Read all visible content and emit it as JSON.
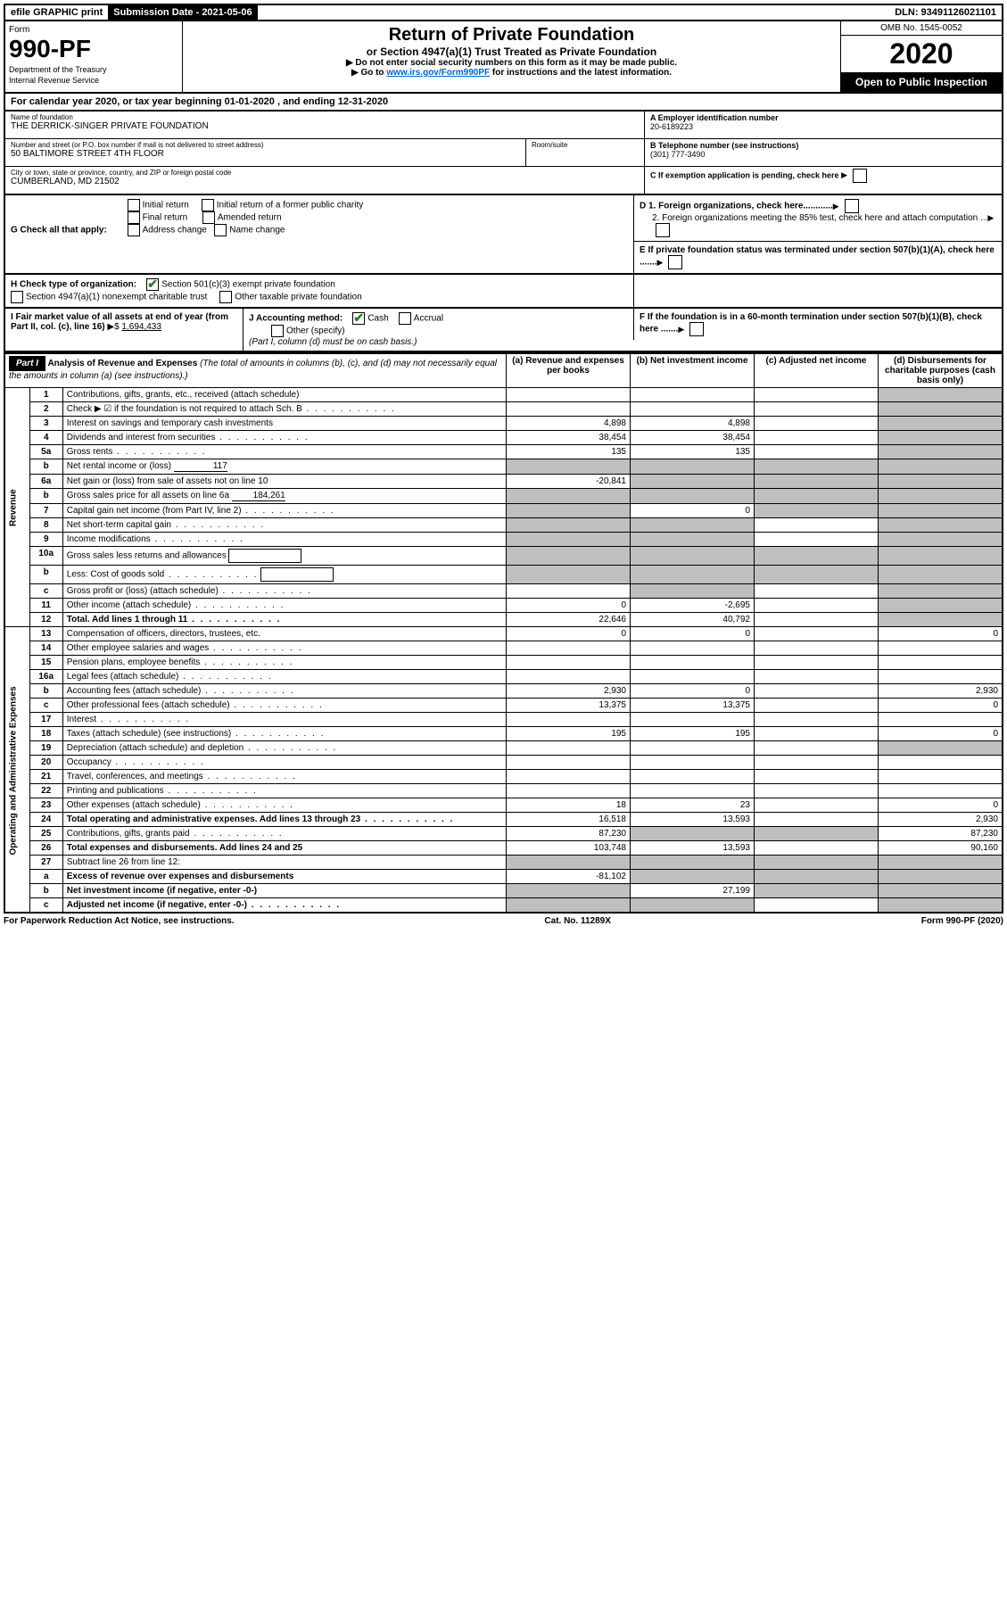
{
  "topbar": {
    "efile": "efile GRAPHIC print",
    "sub_label": "Submission Date - 2021-05-06",
    "dln": "DLN: 93491126021101"
  },
  "header": {
    "form_label": "Form",
    "form_number": "990-PF",
    "dept1": "Department of the Treasury",
    "dept2": "Internal Revenue Service",
    "title": "Return of Private Foundation",
    "sub": "or Section 4947(a)(1) Trust Treated as Private Foundation",
    "note1": "▶ Do not enter social security numbers on this form as it may be made public.",
    "note2_pre": "▶ Go to ",
    "note2_link": "www.irs.gov/Form990PF",
    "note2_post": " for instructions and the latest information.",
    "omb": "OMB No. 1545-0052",
    "year": "2020",
    "open": "Open to Public Inspection"
  },
  "cal_year": "For calendar year 2020, or tax year beginning 01-01-2020                            , and ending 12-31-2020",
  "info": {
    "name_lbl": "Name of foundation",
    "name": "THE DERRICK-SINGER PRIVATE FOUNDATION",
    "addr_lbl": "Number and street (or P.O. box number if mail is not delivered to street address)",
    "addr": "50 BALTIMORE STREET 4TH FLOOR",
    "room_lbl": "Room/suite",
    "city_lbl": "City or town, state or province, country, and ZIP or foreign postal code",
    "city": "CUMBERLAND, MD  21502",
    "a_lbl": "A Employer identification number",
    "a_val": "20-6189223",
    "b_lbl": "B Telephone number (see instructions)",
    "b_val": "(301) 777-3490",
    "c_lbl": "C If exemption application is pending, check here"
  },
  "g": {
    "label": "G Check all that apply:",
    "opts": [
      "Initial return",
      "Final return",
      "Address change",
      "Initial return of a former public charity",
      "Amended return",
      "Name change"
    ],
    "d1": "D 1. Foreign organizations, check here............",
    "d2": "2. Foreign organizations meeting the 85% test, check here and attach computation ...",
    "e": "E  If private foundation status was terminated under section 507(b)(1)(A), check here ......."
  },
  "h": {
    "label": "H Check type of organization:",
    "opt1": "Section 501(c)(3) exempt private foundation",
    "opt2": "Section 4947(a)(1) nonexempt charitable trust",
    "opt3": "Other taxable private foundation"
  },
  "i": {
    "label": "I Fair market value of all assets at end of year (from Part II, col. (c), line 16)",
    "valpre": "▶$",
    "val": "1,694,433",
    "j_label": "J Accounting method:",
    "j_cash": "Cash",
    "j_accrual": "Accrual",
    "j_other": "Other (specify)",
    "j_note": "(Part I, column (d) must be on cash basis.)",
    "f": "F  If the foundation is in a 60-month termination under section 507(b)(1)(B), check here ......."
  },
  "part1": {
    "label": "Part I",
    "title": "Analysis of Revenue and Expenses",
    "note": "(The total of amounts in columns (b), (c), and (d) may not necessarily equal the amounts in column (a) (see instructions).)",
    "col_a": "(a)   Revenue and expenses per books",
    "col_b": "(b)   Net investment income",
    "col_c": "(c)   Adjusted net income",
    "col_d": "(d)   Disbursements for charitable purposes (cash basis only)"
  },
  "side": {
    "revenue": "Revenue",
    "expenses": "Operating and Administrative Expenses"
  },
  "rows": [
    {
      "n": "1",
      "label": "Contributions, gifts, grants, etc., received (attach schedule)",
      "a": "",
      "b": "",
      "c": "",
      "d": "grey"
    },
    {
      "n": "2",
      "label": "Check ▶ ☑ if the foundation is not required to attach Sch. B",
      "dots": true,
      "a": "",
      "b": "",
      "c": "",
      "d": "grey"
    },
    {
      "n": "3",
      "label": "Interest on savings and temporary cash investments",
      "a": "4,898",
      "b": "4,898",
      "c": "",
      "d": "grey"
    },
    {
      "n": "4",
      "label": "Dividends and interest from securities",
      "dots": true,
      "a": "38,454",
      "b": "38,454",
      "c": "",
      "d": "grey"
    },
    {
      "n": "5a",
      "label": "Gross rents",
      "dots": true,
      "a": "135",
      "b": "135",
      "c": "",
      "d": "grey"
    },
    {
      "n": "b",
      "label": "Net rental income or (loss)",
      "inline": "117",
      "a": "grey",
      "b": "grey",
      "c": "grey",
      "d": "grey"
    },
    {
      "n": "6a",
      "label": "Net gain or (loss) from sale of assets not on line 10",
      "a": "-20,841",
      "b": "grey",
      "c": "grey",
      "d": "grey"
    },
    {
      "n": "b",
      "label": "Gross sales price for all assets on line 6a",
      "inline": "184,261",
      "a": "grey",
      "b": "grey",
      "c": "grey",
      "d": "grey"
    },
    {
      "n": "7",
      "label": "Capital gain net income (from Part IV, line 2)",
      "dots": true,
      "a": "grey",
      "b": "0",
      "c": "grey",
      "d": "grey"
    },
    {
      "n": "8",
      "label": "Net short-term capital gain",
      "dots": true,
      "a": "grey",
      "b": "grey",
      "c": "",
      "d": "grey"
    },
    {
      "n": "9",
      "label": "Income modifications",
      "dots": true,
      "a": "grey",
      "b": "grey",
      "c": "",
      "d": "grey"
    },
    {
      "n": "10a",
      "label": "Gross sales less returns and allowances",
      "inlinebox": true,
      "a": "grey",
      "b": "grey",
      "c": "grey",
      "d": "grey"
    },
    {
      "n": "b",
      "label": "Less: Cost of goods sold",
      "dots": true,
      "inlinebox": true,
      "a": "grey",
      "b": "grey",
      "c": "grey",
      "d": "grey"
    },
    {
      "n": "c",
      "label": "Gross profit or (loss) (attach schedule)",
      "dots": true,
      "a": "",
      "b": "grey",
      "c": "",
      "d": "grey"
    },
    {
      "n": "11",
      "label": "Other income (attach schedule)",
      "dots": true,
      "a": "0",
      "b": "-2,695",
      "c": "",
      "d": "grey"
    },
    {
      "n": "12",
      "label": "Total. Add lines 1 through 11",
      "dots": true,
      "bold": true,
      "a": "22,646",
      "b": "40,792",
      "c": "",
      "d": "grey"
    },
    {
      "n": "13",
      "label": "Compensation of officers, directors, trustees, etc.",
      "a": "0",
      "b": "0",
      "c": "",
      "d": "0"
    },
    {
      "n": "14",
      "label": "Other employee salaries and wages",
      "dots": true,
      "a": "",
      "b": "",
      "c": "",
      "d": ""
    },
    {
      "n": "15",
      "label": "Pension plans, employee benefits",
      "dots": true,
      "a": "",
      "b": "",
      "c": "",
      "d": ""
    },
    {
      "n": "16a",
      "label": "Legal fees (attach schedule)",
      "dots": true,
      "a": "",
      "b": "",
      "c": "",
      "d": ""
    },
    {
      "n": "b",
      "label": "Accounting fees (attach schedule)",
      "dots": true,
      "a": "2,930",
      "b": "0",
      "c": "",
      "d": "2,930"
    },
    {
      "n": "c",
      "label": "Other professional fees (attach schedule)",
      "dots": true,
      "a": "13,375",
      "b": "13,375",
      "c": "",
      "d": "0"
    },
    {
      "n": "17",
      "label": "Interest",
      "dots": true,
      "a": "",
      "b": "",
      "c": "",
      "d": ""
    },
    {
      "n": "18",
      "label": "Taxes (attach schedule) (see instructions)",
      "dots": true,
      "a": "195",
      "b": "195",
      "c": "",
      "d": "0"
    },
    {
      "n": "19",
      "label": "Depreciation (attach schedule) and depletion",
      "dots": true,
      "a": "",
      "b": "",
      "c": "",
      "d": "grey"
    },
    {
      "n": "20",
      "label": "Occupancy",
      "dots": true,
      "a": "",
      "b": "",
      "c": "",
      "d": ""
    },
    {
      "n": "21",
      "label": "Travel, conferences, and meetings",
      "dots": true,
      "a": "",
      "b": "",
      "c": "",
      "d": ""
    },
    {
      "n": "22",
      "label": "Printing and publications",
      "dots": true,
      "a": "",
      "b": "",
      "c": "",
      "d": ""
    },
    {
      "n": "23",
      "label": "Other expenses (attach schedule)",
      "dots": true,
      "a": "18",
      "b": "23",
      "c": "",
      "d": "0"
    },
    {
      "n": "24",
      "label": "Total operating and administrative expenses. Add lines 13 through 23",
      "dots": true,
      "bold": true,
      "a": "16,518",
      "b": "13,593",
      "c": "",
      "d": "2,930"
    },
    {
      "n": "25",
      "label": "Contributions, gifts, grants paid",
      "dots": true,
      "a": "87,230",
      "b": "grey",
      "c": "grey",
      "d": "87,230"
    },
    {
      "n": "26",
      "label": "Total expenses and disbursements. Add lines 24 and 25",
      "bold": true,
      "a": "103,748",
      "b": "13,593",
      "c": "",
      "d": "90,160"
    },
    {
      "n": "27",
      "label": "Subtract line 26 from line 12:",
      "a": "grey",
      "b": "grey",
      "c": "grey",
      "d": "grey"
    },
    {
      "n": "a",
      "label": "Excess of revenue over expenses and disbursements",
      "bold": true,
      "a": "-81,102",
      "b": "grey",
      "c": "grey",
      "d": "grey"
    },
    {
      "n": "b",
      "label": "Net investment income (if negative, enter -0-)",
      "bold": true,
      "a": "grey",
      "b": "27,199",
      "c": "grey",
      "d": "grey"
    },
    {
      "n": "c",
      "label": "Adjusted net income (if negative, enter -0-)",
      "dots": true,
      "bold": true,
      "a": "grey",
      "b": "grey",
      "c": "",
      "d": "grey"
    }
  ],
  "footer": {
    "left": "For Paperwork Reduction Act Notice, see instructions.",
    "mid": "Cat. No. 11289X",
    "right": "Form 990-PF (2020)"
  }
}
